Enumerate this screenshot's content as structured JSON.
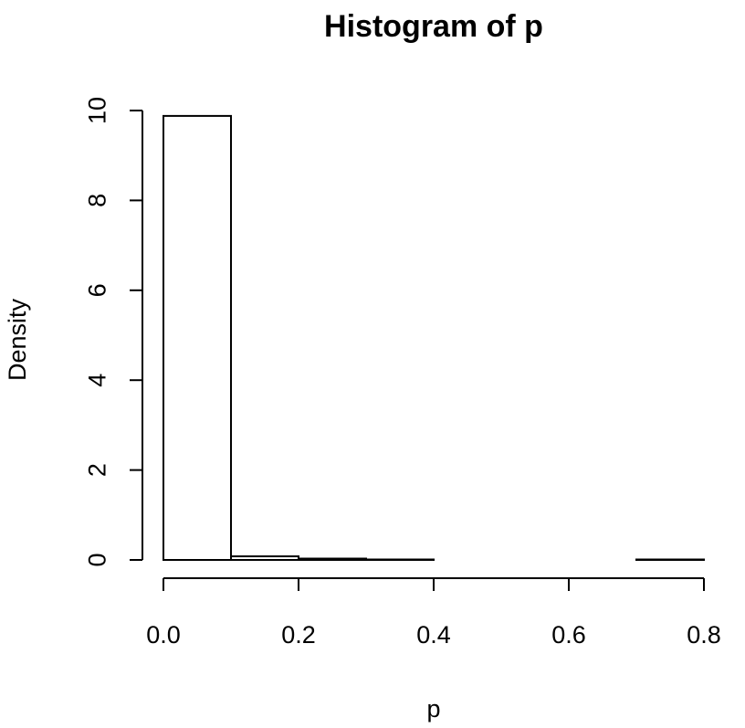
{
  "chart_data": {
    "type": "bar",
    "title": "Histogram of p",
    "xlabel": "p",
    "ylabel": "Density",
    "bins": [
      {
        "start": 0.0,
        "end": 0.1,
        "density": 9.88
      },
      {
        "start": 0.1,
        "end": 0.2,
        "density": 0.08
      },
      {
        "start": 0.2,
        "end": 0.3,
        "density": 0.03
      },
      {
        "start": 0.3,
        "end": 0.4,
        "density": 0.01
      },
      {
        "start": 0.4,
        "end": 0.5,
        "density": 0.0
      },
      {
        "start": 0.5,
        "end": 0.6,
        "density": 0.0
      },
      {
        "start": 0.6,
        "end": 0.7,
        "density": 0.0
      },
      {
        "start": 0.7,
        "end": 0.8,
        "density": 0.01
      }
    ],
    "xlim": [
      0.0,
      0.8
    ],
    "ylim": [
      0,
      10
    ],
    "x_ticks": [
      "0.0",
      "0.2",
      "0.4",
      "0.6",
      "0.8"
    ],
    "y_ticks": [
      "0",
      "2",
      "4",
      "6",
      "8",
      "10"
    ],
    "grid": false,
    "legend": "none"
  }
}
